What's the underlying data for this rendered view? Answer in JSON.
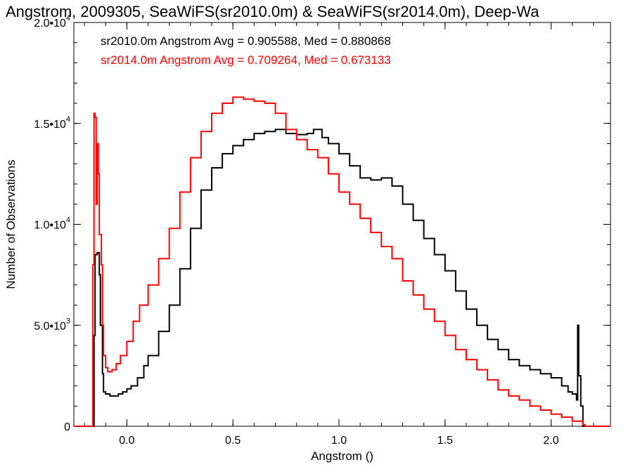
{
  "chart_data": {
    "type": "line",
    "title": "Angstrom, 2009305, SeaWiFS(sr2010.0m) & SeaWiFS(sr2014.0m), Deep-Wa",
    "xlabel": "Angstrom ()",
    "ylabel": "Number of Observations",
    "xlim": [
      -0.25,
      2.28
    ],
    "ylim": [
      0,
      20000
    ],
    "x_ticks": [
      {
        "value": 0.0,
        "label": "0.0"
      },
      {
        "value": 0.5,
        "label": "0.5"
      },
      {
        "value": 1.0,
        "label": "1.0"
      },
      {
        "value": 1.5,
        "label": "1.5"
      },
      {
        "value": 2.0,
        "label": "2.0"
      }
    ],
    "x_minor_step": 0.1,
    "y_ticks": [
      {
        "value": 0,
        "label": "0",
        "exp": ""
      },
      {
        "value": 5000,
        "label": "5.0•10",
        "exp": "3"
      },
      {
        "value": 10000,
        "label": "1.0•10",
        "exp": "4"
      },
      {
        "value": 15000,
        "label": "1.5•10",
        "exp": "4"
      },
      {
        "value": 20000,
        "label": "2.0•10",
        "exp": "4"
      }
    ],
    "y_minor_step": 1000,
    "grid": false,
    "legend_position": "top-left",
    "series": [
      {
        "name": "sr2010.0m Angstrom Avg = 0.905588, Med = 0.880868",
        "color": "#000000",
        "points": [
          [
            -0.25,
            0
          ],
          [
            -0.16,
            0
          ],
          [
            -0.155,
            4500
          ],
          [
            -0.15,
            8500
          ],
          [
            -0.14,
            8600
          ],
          [
            -0.13,
            7500
          ],
          [
            -0.125,
            5000
          ],
          [
            -0.115,
            2600
          ],
          [
            -0.11,
            1700
          ],
          [
            -0.1,
            1600
          ],
          [
            -0.08,
            1500
          ],
          [
            -0.06,
            1500
          ],
          [
            -0.04,
            1600
          ],
          [
            -0.02,
            1700
          ],
          [
            0.0,
            1850
          ],
          [
            0.02,
            2000
          ],
          [
            0.05,
            2400
          ],
          [
            0.08,
            3000
          ],
          [
            0.1,
            3500
          ],
          [
            0.15,
            4700
          ],
          [
            0.2,
            6000
          ],
          [
            0.25,
            7800
          ],
          [
            0.3,
            9800
          ],
          [
            0.35,
            11700
          ],
          [
            0.4,
            12800
          ],
          [
            0.45,
            13500
          ],
          [
            0.5,
            13900
          ],
          [
            0.55,
            14200
          ],
          [
            0.6,
            14500
          ],
          [
            0.65,
            14600
          ],
          [
            0.7,
            14700
          ],
          [
            0.75,
            14500
          ],
          [
            0.8,
            14450
          ],
          [
            0.85,
            14500
          ],
          [
            0.88,
            14700
          ],
          [
            0.92,
            14300
          ],
          [
            0.95,
            14000
          ],
          [
            1.0,
            13500
          ],
          [
            1.05,
            12900
          ],
          [
            1.1,
            12300
          ],
          [
            1.15,
            12200
          ],
          [
            1.2,
            12300
          ],
          [
            1.25,
            11900
          ],
          [
            1.3,
            11000
          ],
          [
            1.35,
            10200
          ],
          [
            1.4,
            9300
          ],
          [
            1.45,
            8500
          ],
          [
            1.5,
            7700
          ],
          [
            1.55,
            6700
          ],
          [
            1.6,
            5800
          ],
          [
            1.65,
            5000
          ],
          [
            1.7,
            4300
          ],
          [
            1.75,
            3800
          ],
          [
            1.8,
            3300
          ],
          [
            1.85,
            3000
          ],
          [
            1.9,
            2800
          ],
          [
            1.95,
            2600
          ],
          [
            2.0,
            2400
          ],
          [
            2.05,
            2000
          ],
          [
            2.08,
            1700
          ],
          [
            2.1,
            1600
          ],
          [
            2.12,
            1300
          ],
          [
            2.125,
            5000
          ],
          [
            2.13,
            2500
          ],
          [
            2.14,
            1000
          ],
          [
            2.15,
            0
          ],
          [
            2.28,
            0
          ]
        ]
      },
      {
        "name": "sr2014.0m Angstrom Avg = 0.709264, Med = 0.673133",
        "color": "#ff0000",
        "points": [
          [
            -0.25,
            0
          ],
          [
            -0.165,
            0
          ],
          [
            -0.16,
            8000
          ],
          [
            -0.155,
            15500
          ],
          [
            -0.15,
            15300
          ],
          [
            -0.145,
            11000
          ],
          [
            -0.14,
            14000
          ],
          [
            -0.135,
            12500
          ],
          [
            -0.13,
            9500
          ],
          [
            -0.12,
            8000
          ],
          [
            -0.115,
            5000
          ],
          [
            -0.11,
            3500
          ],
          [
            -0.1,
            2900
          ],
          [
            -0.09,
            2700
          ],
          [
            -0.07,
            2800
          ],
          [
            -0.05,
            3100
          ],
          [
            -0.03,
            3500
          ],
          [
            0.0,
            4200
          ],
          [
            0.03,
            5200
          ],
          [
            0.06,
            6000
          ],
          [
            0.1,
            7000
          ],
          [
            0.15,
            8300
          ],
          [
            0.2,
            9800
          ],
          [
            0.25,
            11600
          ],
          [
            0.3,
            13300
          ],
          [
            0.35,
            14600
          ],
          [
            0.4,
            15500
          ],
          [
            0.45,
            16000
          ],
          [
            0.5,
            16300
          ],
          [
            0.55,
            16200
          ],
          [
            0.6,
            16100
          ],
          [
            0.65,
            16000
          ],
          [
            0.7,
            15500
          ],
          [
            0.75,
            14700
          ],
          [
            0.8,
            14200
          ],
          [
            0.85,
            13700
          ],
          [
            0.9,
            13300
          ],
          [
            0.95,
            12500
          ],
          [
            1.0,
            11600
          ],
          [
            1.05,
            11000
          ],
          [
            1.1,
            10300
          ],
          [
            1.15,
            9600
          ],
          [
            1.2,
            8900
          ],
          [
            1.25,
            8300
          ],
          [
            1.3,
            7200
          ],
          [
            1.35,
            6500
          ],
          [
            1.4,
            5800
          ],
          [
            1.45,
            5200
          ],
          [
            1.5,
            4500
          ],
          [
            1.55,
            3800
          ],
          [
            1.6,
            3300
          ],
          [
            1.65,
            2800
          ],
          [
            1.7,
            2300
          ],
          [
            1.75,
            1800
          ],
          [
            1.8,
            1500
          ],
          [
            1.85,
            1300
          ],
          [
            1.9,
            1000
          ],
          [
            1.95,
            800
          ],
          [
            2.0,
            600
          ],
          [
            2.05,
            450
          ],
          [
            2.1,
            250
          ],
          [
            2.15,
            80
          ],
          [
            2.16,
            0
          ],
          [
            2.28,
            0
          ]
        ]
      }
    ]
  }
}
